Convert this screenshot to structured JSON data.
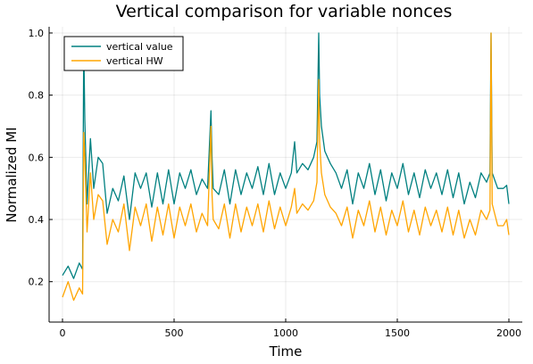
{
  "chart_data": {
    "type": "line",
    "title": "Vertical comparison for variable nonces",
    "xlabel": "Time",
    "ylabel": "Normalized MI",
    "xlim": [
      -60,
      2060
    ],
    "ylim": [
      0.07,
      1.02
    ],
    "xticks": [
      0,
      500,
      1000,
      1500,
      2000
    ],
    "xtick_labels": [
      "0",
      "500",
      "1000",
      "1500",
      "2000"
    ],
    "yticks": [
      0.2,
      0.4,
      0.6,
      0.8,
      1.0
    ],
    "ytick_labels": [
      "0.2",
      "0.4",
      "0.6",
      "0.8",
      "1.0"
    ],
    "grid": true,
    "legend_position": "top-left",
    "series": [
      {
        "name": "vertical value",
        "color": "#008080",
        "x": [
          0,
          25,
          50,
          75,
          90,
          95,
          100,
          110,
          125,
          140,
          160,
          180,
          200,
          225,
          250,
          275,
          300,
          325,
          350,
          375,
          400,
          425,
          450,
          475,
          500,
          525,
          550,
          575,
          600,
          625,
          650,
          665,
          670,
          675,
          700,
          725,
          750,
          775,
          800,
          825,
          850,
          875,
          900,
          925,
          950,
          975,
          1000,
          1025,
          1040,
          1050,
          1075,
          1100,
          1125,
          1140,
          1148,
          1152,
          1160,
          1175,
          1200,
          1225,
          1250,
          1275,
          1300,
          1325,
          1350,
          1375,
          1400,
          1425,
          1450,
          1475,
          1500,
          1525,
          1550,
          1575,
          1600,
          1625,
          1650,
          1675,
          1700,
          1725,
          1750,
          1775,
          1800,
          1825,
          1850,
          1875,
          1900,
          1915,
          1920,
          1925,
          1950,
          1975,
          1990,
          2000
        ],
        "values": [
          0.22,
          0.25,
          0.21,
          0.26,
          0.24,
          0.97,
          0.72,
          0.45,
          0.66,
          0.5,
          0.6,
          0.58,
          0.42,
          0.5,
          0.46,
          0.54,
          0.4,
          0.55,
          0.5,
          0.55,
          0.44,
          0.55,
          0.45,
          0.56,
          0.45,
          0.55,
          0.5,
          0.56,
          0.48,
          0.53,
          0.5,
          0.75,
          0.6,
          0.5,
          0.48,
          0.56,
          0.45,
          0.56,
          0.48,
          0.55,
          0.5,
          0.57,
          0.48,
          0.58,
          0.48,
          0.55,
          0.5,
          0.55,
          0.65,
          0.55,
          0.58,
          0.56,
          0.6,
          0.65,
          1.0,
          0.8,
          0.7,
          0.62,
          0.58,
          0.55,
          0.5,
          0.56,
          0.45,
          0.55,
          0.5,
          0.58,
          0.48,
          0.56,
          0.46,
          0.55,
          0.5,
          0.58,
          0.48,
          0.55,
          0.47,
          0.56,
          0.5,
          0.55,
          0.48,
          0.56,
          0.47,
          0.55,
          0.45,
          0.52,
          0.47,
          0.55,
          0.52,
          0.55,
          1.0,
          0.55,
          0.5,
          0.5,
          0.51,
          0.45
        ]
      },
      {
        "name": "vertical HW",
        "color": "#ffa500",
        "x": [
          0,
          25,
          50,
          75,
          90,
          95,
          100,
          110,
          125,
          140,
          160,
          180,
          200,
          225,
          250,
          275,
          300,
          325,
          350,
          375,
          400,
          425,
          450,
          475,
          500,
          525,
          550,
          575,
          600,
          625,
          650,
          665,
          670,
          675,
          700,
          725,
          750,
          775,
          800,
          825,
          850,
          875,
          900,
          925,
          950,
          975,
          1000,
          1025,
          1040,
          1050,
          1075,
          1100,
          1125,
          1140,
          1148,
          1152,
          1160,
          1175,
          1200,
          1225,
          1250,
          1275,
          1300,
          1325,
          1350,
          1375,
          1400,
          1425,
          1450,
          1475,
          1500,
          1525,
          1550,
          1575,
          1600,
          1625,
          1650,
          1675,
          1700,
          1725,
          1750,
          1775,
          1800,
          1825,
          1850,
          1875,
          1900,
          1915,
          1920,
          1925,
          1950,
          1975,
          1990,
          2000
        ],
        "values": [
          0.15,
          0.2,
          0.14,
          0.18,
          0.16,
          0.68,
          0.6,
          0.36,
          0.55,
          0.4,
          0.48,
          0.46,
          0.32,
          0.4,
          0.36,
          0.45,
          0.3,
          0.44,
          0.38,
          0.45,
          0.33,
          0.44,
          0.35,
          0.45,
          0.34,
          0.44,
          0.38,
          0.45,
          0.36,
          0.42,
          0.38,
          0.7,
          0.48,
          0.4,
          0.37,
          0.45,
          0.34,
          0.45,
          0.36,
          0.44,
          0.38,
          0.45,
          0.36,
          0.46,
          0.37,
          0.44,
          0.38,
          0.44,
          0.5,
          0.42,
          0.45,
          0.43,
          0.46,
          0.52,
          0.85,
          0.65,
          0.55,
          0.48,
          0.44,
          0.42,
          0.38,
          0.44,
          0.34,
          0.43,
          0.38,
          0.46,
          0.36,
          0.44,
          0.35,
          0.43,
          0.38,
          0.46,
          0.36,
          0.43,
          0.35,
          0.44,
          0.38,
          0.43,
          0.36,
          0.44,
          0.35,
          0.43,
          0.34,
          0.4,
          0.35,
          0.43,
          0.4,
          0.43,
          1.0,
          0.45,
          0.38,
          0.38,
          0.4,
          0.35
        ]
      }
    ]
  }
}
